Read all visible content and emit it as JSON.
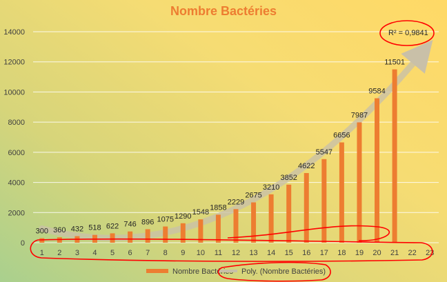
{
  "chart_data": {
    "type": "bar",
    "title": "Nombre Bactéries",
    "categories": [
      "1",
      "2",
      "3",
      "4",
      "5",
      "6",
      "7",
      "8",
      "9",
      "10",
      "11",
      "12",
      "13",
      "14",
      "15",
      "16",
      "17",
      "18",
      "19",
      "20",
      "21",
      "22",
      "23"
    ],
    "series": [
      {
        "name": "Nombre Bactéries",
        "values": [
          300,
          360,
          432,
          518,
          622,
          746,
          896,
          1075,
          1290,
          1548,
          1858,
          2229,
          2675,
          3210,
          3852,
          4622,
          5547,
          6656,
          7987,
          9584,
          11501,
          null,
          null
        ],
        "data_labels": [
          "300",
          "360",
          "432",
          "518",
          "622",
          "746",
          "896",
          "1075",
          "1290",
          "1548",
          "1858",
          "2229",
          "2675",
          "3210",
          "3852",
          "4622",
          "5547",
          "6656",
          "7987",
          "9584",
          "11501",
          "",
          ""
        ],
        "color": "#ed7d31"
      }
    ],
    "trendline": {
      "type": "polynomial",
      "label": "Poly. (Nombre Bactéries)",
      "r2_label": "R² = 0,9841",
      "color": "#c9c0a8"
    },
    "yticks": [
      "0",
      "2000",
      "4000",
      "6000",
      "8000",
      "10000",
      "12000",
      "14000"
    ],
    "ylim": [
      0,
      14000
    ],
    "grid": true,
    "legend": "bottom",
    "annotations": {
      "color": "#ff0000"
    },
    "colors": {
      "title": "#ed7d31",
      "bar": "#ed7d31",
      "grid": "#ffffff"
    }
  }
}
